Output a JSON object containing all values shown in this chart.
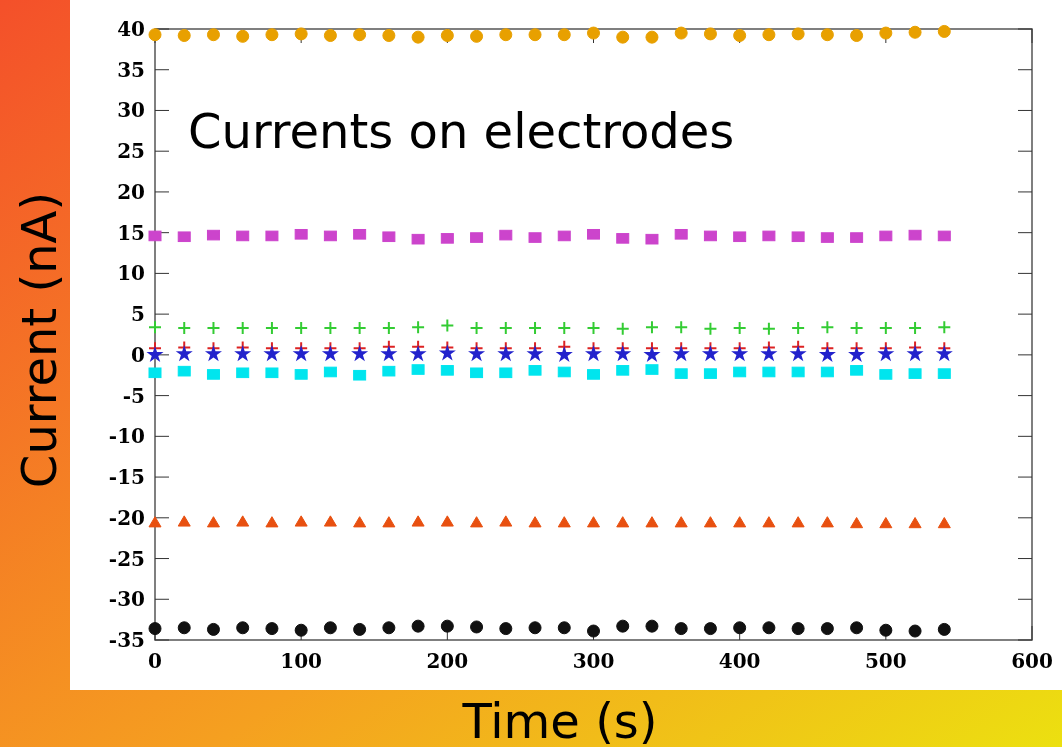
{
  "chart_data": {
    "type": "scatter",
    "title": "Currents on electrodes",
    "xlabel": "Time (s)",
    "ylabel": "Current (nA)",
    "x": [
      0,
      20,
      40,
      60,
      80,
      100,
      120,
      140,
      160,
      180,
      200,
      220,
      240,
      260,
      280,
      300,
      320,
      340,
      360,
      380,
      400,
      420,
      440,
      460,
      480,
      500,
      520,
      540
    ],
    "xlim": [
      0,
      600
    ],
    "xticks": [
      0,
      100,
      200,
      300,
      400,
      500,
      600
    ],
    "ylim": [
      -35,
      40
    ],
    "yticks": [
      -35,
      -30,
      -25,
      -20,
      -15,
      -10,
      -5,
      0,
      5,
      10,
      15,
      20,
      25,
      30,
      35,
      40
    ],
    "grid": false,
    "series": [
      {
        "color": "#e8a000",
        "marker": "circle",
        "values": [
          39.3,
          39.2,
          39.3,
          39.1,
          39.3,
          39.4,
          39.2,
          39.3,
          39.2,
          39.0,
          39.2,
          39.1,
          39.3,
          39.3,
          39.3,
          39.5,
          39.0,
          39.0,
          39.5,
          39.4,
          39.2,
          39.3,
          39.4,
          39.3,
          39.2,
          39.5,
          39.6,
          39.7
        ]
      },
      {
        "color": "#cc44cc",
        "marker": "square",
        "values": [
          14.6,
          14.5,
          14.7,
          14.6,
          14.6,
          14.8,
          14.6,
          14.8,
          14.5,
          14.2,
          14.3,
          14.4,
          14.7,
          14.4,
          14.6,
          14.8,
          14.3,
          14.2,
          14.8,
          14.6,
          14.5,
          14.6,
          14.5,
          14.4,
          14.4,
          14.6,
          14.7,
          14.6
        ]
      },
      {
        "color": "#33cc33",
        "marker": "cross",
        "values": [
          3.4,
          3.3,
          3.3,
          3.3,
          3.3,
          3.3,
          3.3,
          3.3,
          3.3,
          3.4,
          3.6,
          3.3,
          3.3,
          3.3,
          3.3,
          3.3,
          3.2,
          3.4,
          3.4,
          3.2,
          3.3,
          3.2,
          3.3,
          3.4,
          3.3,
          3.3,
          3.3,
          3.4
        ]
      },
      {
        "color": "#dd2222",
        "marker": "cross",
        "values": [
          0.8,
          0.9,
          0.8,
          0.9,
          0.8,
          0.8,
          0.8,
          0.8,
          1.0,
          1.0,
          0.9,
          0.8,
          0.8,
          0.8,
          1.0,
          0.8,
          0.8,
          0.8,
          0.8,
          0.8,
          0.8,
          0.9,
          1.0,
          0.8,
          0.8,
          0.8,
          0.9,
          0.8
        ]
      },
      {
        "color": "#2222cc",
        "marker": "star",
        "values": [
          0.0,
          0.1,
          0.1,
          0.1,
          0.1,
          0.1,
          0.1,
          0.1,
          0.1,
          0.1,
          0.2,
          0.1,
          0.1,
          0.1,
          0.0,
          0.1,
          0.1,
          0.0,
          0.1,
          0.1,
          0.1,
          0.1,
          0.1,
          0.0,
          0.0,
          0.1,
          0.1,
          0.1
        ]
      },
      {
        "color": "#00e5ee",
        "marker": "square",
        "values": [
          -2.2,
          -2.0,
          -2.4,
          -2.2,
          -2.2,
          -2.4,
          -2.1,
          -2.5,
          -2.0,
          -1.8,
          -1.9,
          -2.2,
          -2.2,
          -1.9,
          -2.1,
          -2.4,
          -1.9,
          -1.8,
          -2.3,
          -2.3,
          -2.1,
          -2.1,
          -2.1,
          -2.1,
          -1.9,
          -2.4,
          -2.3,
          -2.3
        ]
      },
      {
        "color": "#e85010",
        "marker": "triangle",
        "values": [
          -20.6,
          -20.5,
          -20.6,
          -20.5,
          -20.6,
          -20.5,
          -20.5,
          -20.6,
          -20.6,
          -20.5,
          -20.5,
          -20.6,
          -20.5,
          -20.6,
          -20.6,
          -20.6,
          -20.6,
          -20.6,
          -20.6,
          -20.6,
          -20.6,
          -20.6,
          -20.6,
          -20.6,
          -20.7,
          -20.7,
          -20.7,
          -20.7
        ]
      },
      {
        "color": "#111111",
        "marker": "circle",
        "values": [
          -33.6,
          -33.5,
          -33.7,
          -33.5,
          -33.6,
          -33.8,
          -33.5,
          -33.7,
          -33.5,
          -33.3,
          -33.3,
          -33.4,
          -33.6,
          -33.5,
          -33.5,
          -33.9,
          -33.3,
          -33.3,
          -33.6,
          -33.6,
          -33.5,
          -33.5,
          -33.6,
          -33.6,
          -33.5,
          -33.8,
          -33.9,
          -33.7
        ]
      }
    ]
  }
}
